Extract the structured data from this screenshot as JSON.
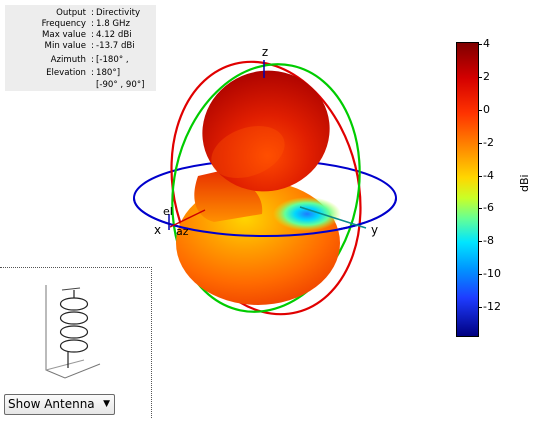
{
  "info_panel": {
    "rows": [
      {
        "label": "Output",
        "value": "Directivity"
      },
      {
        "label": "Frequency",
        "value": "1.8 GHz"
      },
      {
        "label": "Max value",
        "value": "4.12 dBi"
      },
      {
        "label": "Min value",
        "value": "-13.7 dBi"
      },
      {
        "label": "Azimuth",
        "value": "[-180° ,"
      },
      {
        "label": "Elevation",
        "value": "180°]"
      }
    ],
    "continuation": "[-90° , 90°]"
  },
  "plot": {
    "axis_labels": {
      "z": "z",
      "y": "y",
      "x": "x",
      "el": "el",
      "az": "az"
    },
    "ring_colors": {
      "azimuth": "#0000cc",
      "elevation_xz": "#e00000",
      "elevation_yz": "#00cc00"
    }
  },
  "colorbar": {
    "unit": "dBi",
    "ticks": [
      "4",
      "2",
      "0",
      "-2",
      "-4",
      "-6",
      "-8",
      "-10",
      "-12"
    ],
    "min": -13.7,
    "max": 4.12
  },
  "antenna_panel": {
    "icon": "helix-antenna-icon"
  },
  "show_antenna": {
    "label": "Show Antenna",
    "arrow": "▼"
  }
}
